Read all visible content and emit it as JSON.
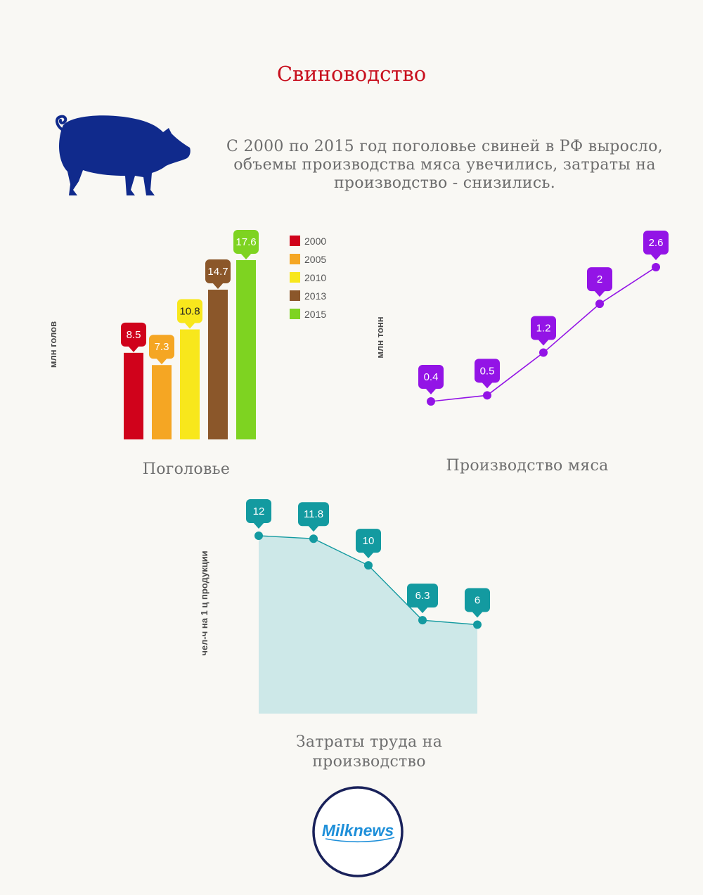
{
  "title": "Свиноводство",
  "intro": "С 2000 по 2015 год поголовье свиней в РФ выросло, объемы производства мяса увечились, затраты на производство - снизились.",
  "colors": {
    "title": "#c8101e",
    "pig": "#102a8c",
    "production": "#9314e6",
    "labor": "#139aa0",
    "labor_area": "#cde8e8",
    "logo_ring": "#19215a",
    "logo_text": "#1e8fd9"
  },
  "icons": {
    "pig": "pig-icon",
    "logo": "milknews-logo"
  },
  "logo": {
    "text": "Milknews"
  },
  "chart_data": [
    {
      "type": "bar",
      "title": "Поголовье",
      "ylabel": "млн голов",
      "categories": [
        "2000",
        "2005",
        "2010",
        "2013",
        "2015"
      ],
      "values": [
        8.5,
        7.3,
        10.8,
        14.7,
        17.6
      ],
      "colors": [
        "#d0021b",
        "#f5a623",
        "#f8e71c",
        "#8b572a",
        "#7ed321"
      ],
      "legend": [
        "2000",
        "2005",
        "2010",
        "2013",
        "2015"
      ],
      "legend_position": "top-right",
      "ylim": [
        0,
        17.6
      ],
      "grid": false
    },
    {
      "type": "line",
      "title": "Производство мяса",
      "ylabel": "млн тонн",
      "values": [
        0.4,
        0.5,
        1.2,
        2,
        2.6
      ],
      "labels": [
        "0.4",
        "0.5",
        "1.2",
        "2",
        "2.6"
      ],
      "ylim": [
        0.4,
        2.6
      ],
      "grid": false
    },
    {
      "type": "area",
      "title": "Затраты труда на производство",
      "ylabel": "чел-ч на 1 ц продукции",
      "values": [
        12,
        11.8,
        10,
        6.3,
        6
      ],
      "labels": [
        "12",
        "11.8",
        "10",
        "6.3",
        "6"
      ],
      "ylim": [
        0,
        12
      ],
      "grid": false
    }
  ]
}
